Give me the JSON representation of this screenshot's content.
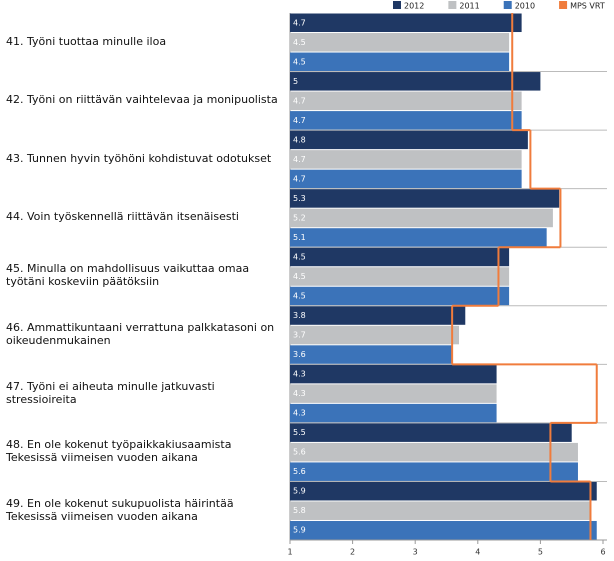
{
  "chart_data": {
    "type": "bar",
    "orientation": "horizontal",
    "categories": [
      "41. Työni tuottaa minulle iloa",
      "42. Työni on riittävän vaihtelevaa ja monipuolista",
      "43. Tunnen hyvin työhöni kohdistuvat odotukset",
      "44. Voin työskennellä riittävän itsenäisesti",
      "45. Minulla on mahdollisuus vaikuttaa omaa työtäni koskeviin päätöksiin",
      "46. Ammattikuntaani verrattuna palkkatasoni on oikeudenmukainen",
      "47. Työni ei aiheuta minulle jatkuvasti stressioireita",
      "48. En ole kokenut työpaikkakiusaamista Tekesissä viimeisen vuoden aikana",
      "49. En ole kokenut sukupuolista häirintää Tekesissä viimeisen vuoden aikana"
    ],
    "series": [
      {
        "name": "2012",
        "color": "#1f3864",
        "values": [
          4.7,
          5.0,
          4.8,
          5.3,
          4.5,
          3.8,
          4.3,
          5.5,
          5.9
        ]
      },
      {
        "name": "2011",
        "color": "#bfc1c3",
        "values": [
          4.5,
          4.7,
          4.7,
          5.2,
          4.5,
          3.7,
          4.3,
          5.6,
          5.8
        ]
      },
      {
        "name": "2010",
        "color": "#3b73b9",
        "values": [
          4.5,
          4.7,
          4.7,
          5.1,
          4.5,
          3.6,
          4.3,
          5.6,
          5.9
        ]
      },
      {
        "name": "MPS VRT",
        "color": "#f07c3c",
        "type": "step",
        "values": [
          4.55,
          4.55,
          4.84,
          5.32,
          4.33,
          3.59,
          5.9,
          5.16,
          5.8
        ]
      }
    ],
    "xlim": [
      1,
      6
    ],
    "xticks": [
      1,
      2,
      3,
      4,
      5,
      6
    ],
    "legend": "top-right"
  }
}
